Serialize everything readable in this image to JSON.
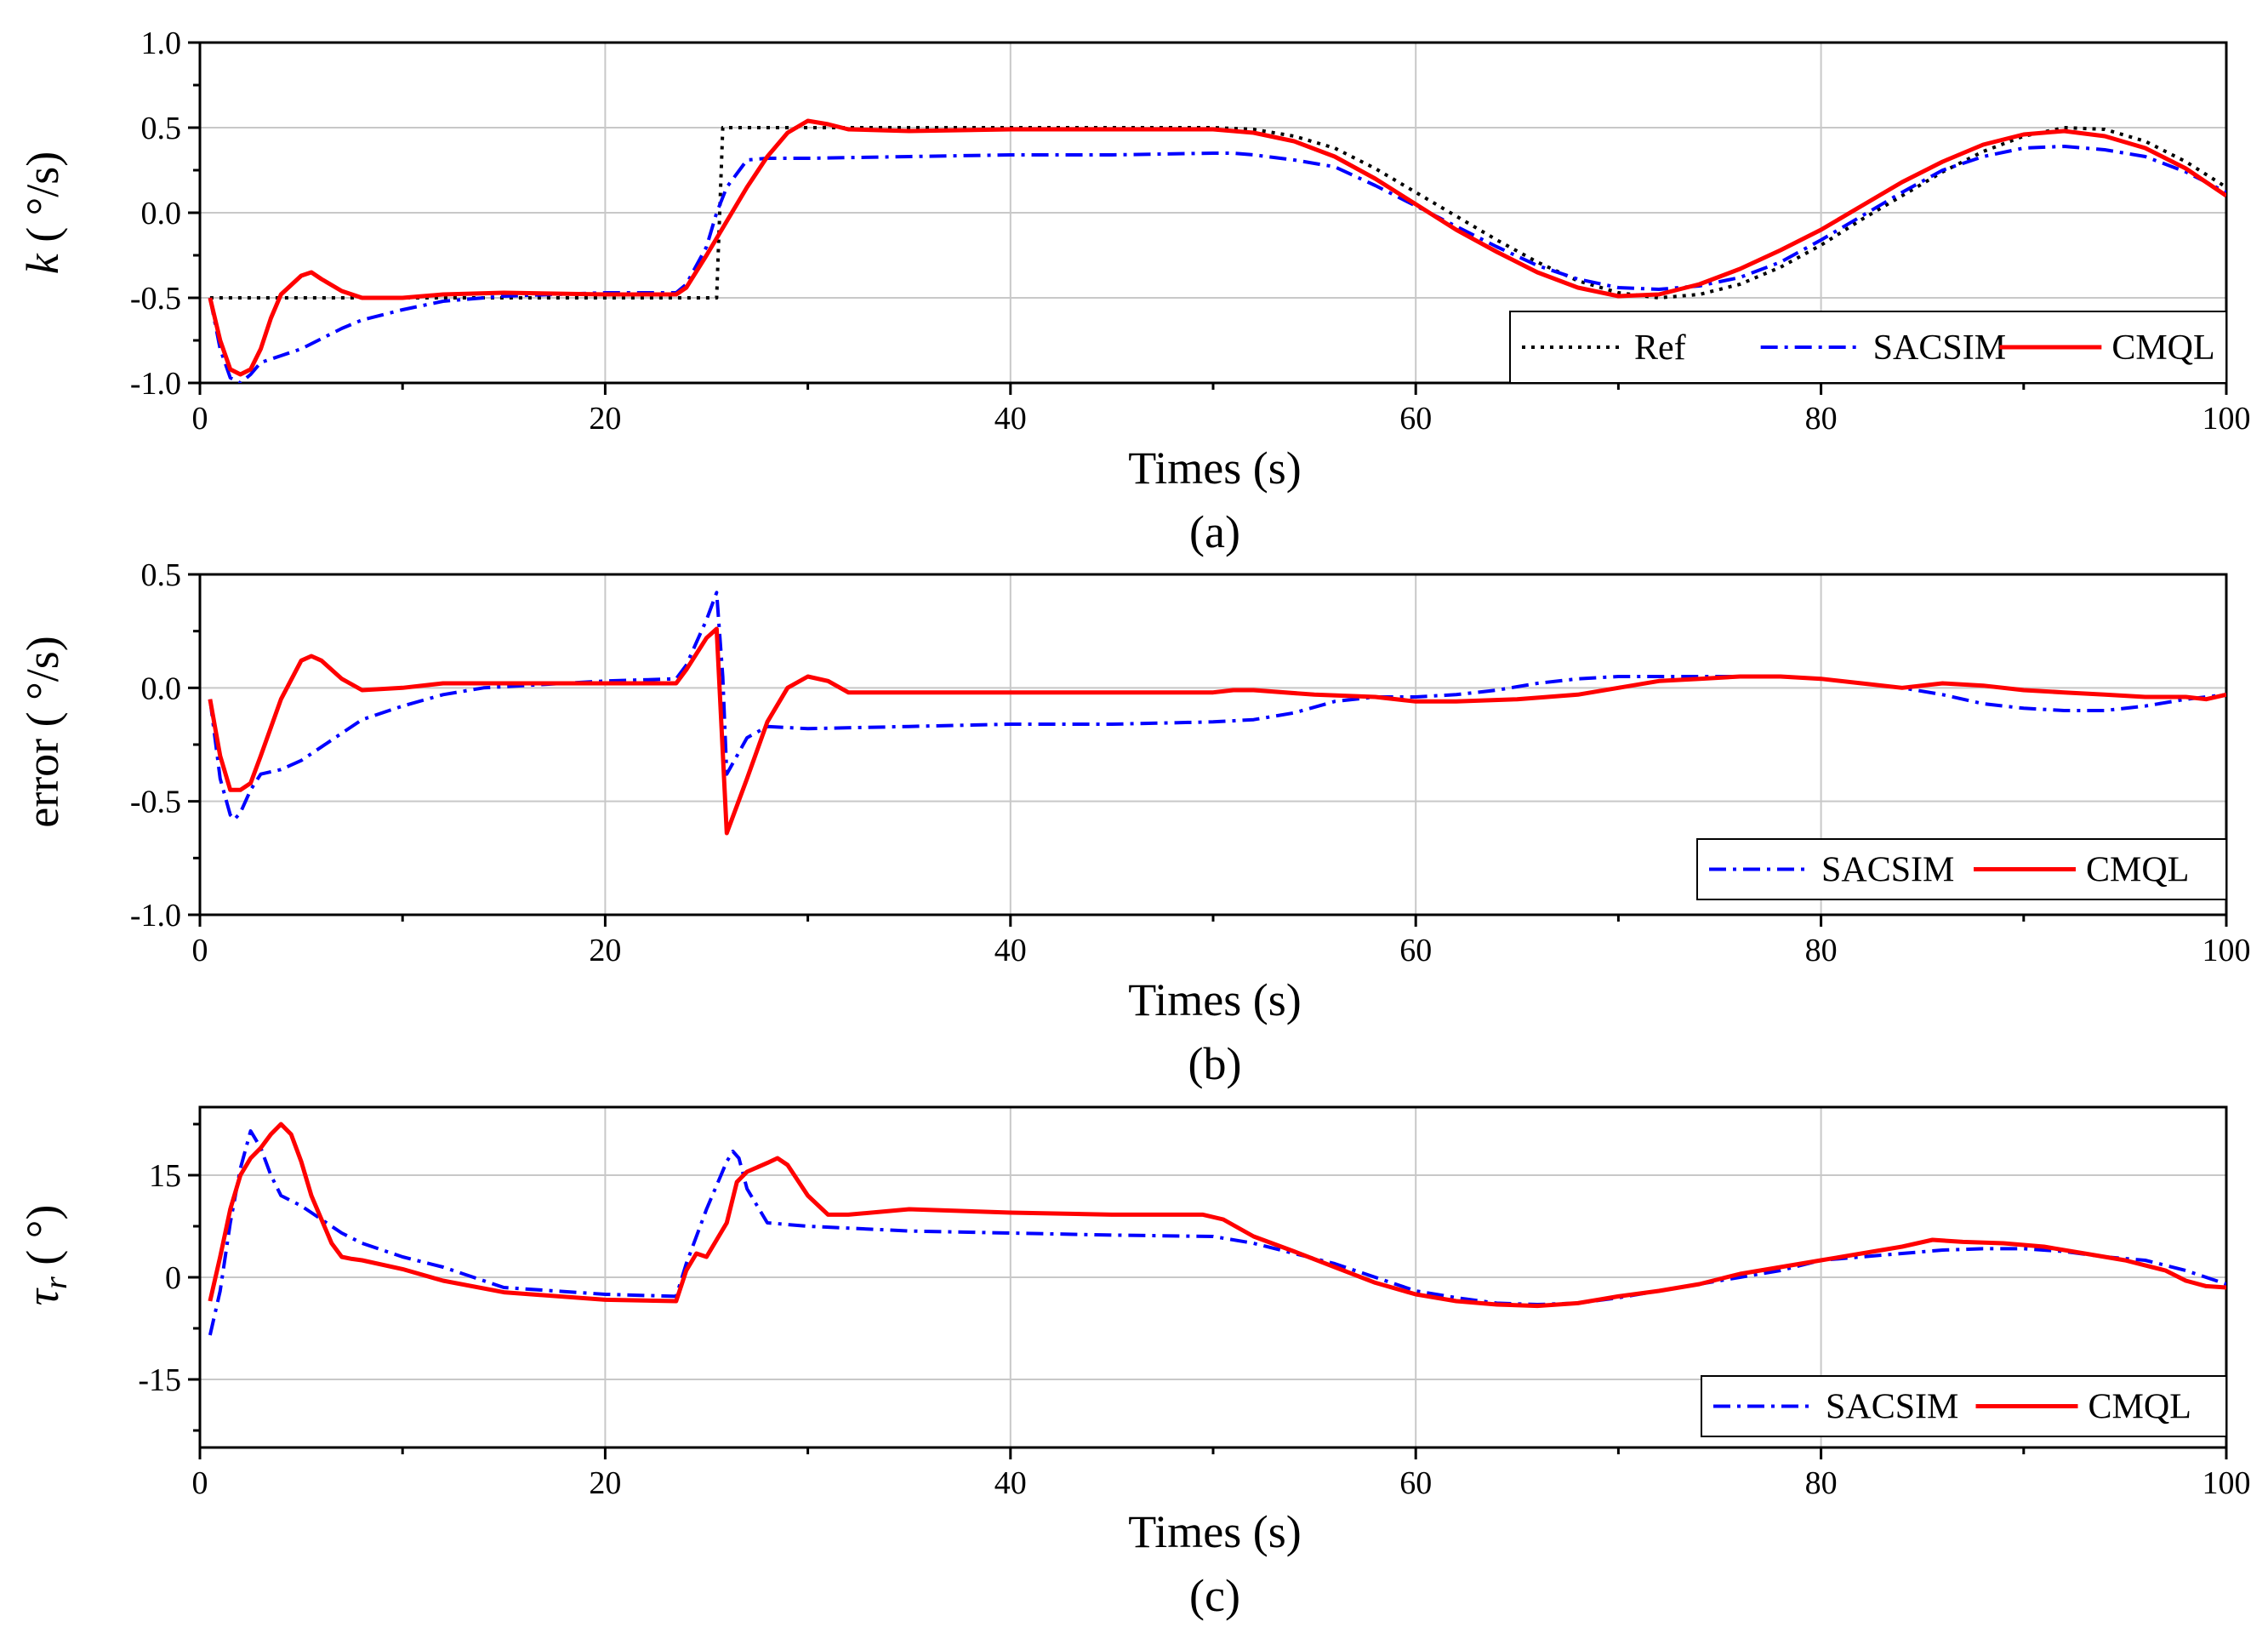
{
  "colors": {
    "ref": "#000000",
    "sacsim": "#0000ff",
    "cmql": "#ff0000",
    "grid": "#c8c8c8"
  },
  "chart_data": [
    {
      "type": "line",
      "caption": "(a)",
      "xlabel": "Times (s)",
      "ylabel_main": "k",
      "ylabel_unit": " ( °/s)",
      "xlim": [
        0,
        100
      ],
      "ylim": [
        -1.0,
        1.0
      ],
      "xticks": [
        0,
        20,
        40,
        60,
        80,
        100
      ],
      "xtick_labels": [
        "0",
        "20",
        "40",
        "60",
        "80",
        "100"
      ],
      "yticks": [
        -1.0,
        -0.5,
        0.0,
        0.5,
        1.0
      ],
      "ytick_labels": [
        "-1.0",
        "-0.5",
        "0.0",
        "0.5",
        "1.0"
      ],
      "grid": true,
      "legend_position": "bottom-right",
      "series": [
        {
          "name": "Ref",
          "style": "dotted",
          "color": "#000000",
          "x": [
            0.5,
            25.5,
            25.8,
            50,
            52,
            54,
            56,
            58,
            60,
            62,
            64,
            66,
            68,
            70,
            72,
            74,
            76,
            78,
            80,
            82,
            84,
            86,
            88,
            90,
            92,
            94,
            96,
            98,
            100
          ],
          "y": [
            -0.5,
            -0.5,
            0.5,
            0.5,
            0.49,
            0.45,
            0.38,
            0.26,
            0.12,
            -0.02,
            -0.16,
            -0.29,
            -0.4,
            -0.47,
            -0.5,
            -0.48,
            -0.42,
            -0.32,
            -0.19,
            -0.04,
            0.1,
            0.24,
            0.36,
            0.45,
            0.5,
            0.49,
            0.42,
            0.3,
            0.15
          ]
        },
        {
          "name": "SACSIM",
          "style": "dashdot",
          "color": "#0000ff",
          "x": [
            0.5,
            1,
            1.5,
            2,
            2.5,
            3,
            4,
            5,
            6,
            7,
            8,
            10,
            12,
            15,
            20,
            23.5,
            24,
            25,
            25.5,
            26,
            27,
            28,
            30,
            35,
            40,
            45,
            50,
            51,
            52,
            54,
            56,
            58,
            60,
            62,
            64,
            66,
            68,
            70,
            72,
            74,
            76,
            78,
            80,
            82,
            84,
            86,
            88,
            90,
            92,
            94,
            96,
            98,
            100
          ],
          "y": [
            -0.5,
            -0.8,
            -0.97,
            -1.0,
            -0.95,
            -0.88,
            -0.84,
            -0.8,
            -0.74,
            -0.68,
            -0.63,
            -0.57,
            -0.52,
            -0.49,
            -0.47,
            -0.47,
            -0.42,
            -0.2,
            0.0,
            0.15,
            0.31,
            0.32,
            0.32,
            0.33,
            0.34,
            0.34,
            0.35,
            0.35,
            0.34,
            0.31,
            0.27,
            0.16,
            0.04,
            -0.08,
            -0.2,
            -0.31,
            -0.39,
            -0.44,
            -0.45,
            -0.43,
            -0.38,
            -0.29,
            -0.16,
            -0.02,
            0.12,
            0.25,
            0.33,
            0.38,
            0.39,
            0.37,
            0.33,
            0.24,
            0.12
          ]
        },
        {
          "name": "CMQL",
          "style": "solid",
          "color": "#ff0000",
          "x": [
            0.5,
            1,
            1.5,
            2,
            2.5,
            3,
            3.5,
            4,
            5,
            5.5,
            6,
            7,
            8,
            10,
            12,
            15,
            20,
            23.5,
            24,
            25,
            26,
            27,
            28,
            29,
            30,
            31,
            32,
            35,
            40,
            45,
            50,
            52,
            54,
            56,
            58,
            60,
            62,
            64,
            66,
            68,
            70,
            72,
            74,
            76,
            78,
            80,
            82,
            84,
            86,
            88,
            90,
            92,
            94,
            96,
            98,
            100
          ],
          "y": [
            -0.5,
            -0.75,
            -0.92,
            -0.95,
            -0.92,
            -0.8,
            -0.62,
            -0.48,
            -0.37,
            -0.35,
            -0.39,
            -0.46,
            -0.5,
            -0.5,
            -0.48,
            -0.47,
            -0.48,
            -0.48,
            -0.44,
            -0.25,
            -0.05,
            0.15,
            0.33,
            0.47,
            0.54,
            0.52,
            0.49,
            0.48,
            0.49,
            0.49,
            0.49,
            0.47,
            0.42,
            0.33,
            0.2,
            0.05,
            -0.1,
            -0.23,
            -0.35,
            -0.44,
            -0.49,
            -0.48,
            -0.42,
            -0.33,
            -0.22,
            -0.1,
            0.04,
            0.18,
            0.3,
            0.4,
            0.46,
            0.48,
            0.45,
            0.38,
            0.26,
            0.1
          ]
        }
      ]
    },
    {
      "type": "line",
      "caption": "(b)",
      "xlabel": "Times (s)",
      "ylabel_main": "error",
      "ylabel_unit": " ( °/s)",
      "xlim": [
        0,
        100
      ],
      "ylim": [
        -1.0,
        0.5
      ],
      "xticks": [
        0,
        20,
        40,
        60,
        80,
        100
      ],
      "xtick_labels": [
        "0",
        "20",
        "40",
        "60",
        "80",
        "100"
      ],
      "yticks": [
        -1.0,
        -0.5,
        0.0,
        0.5
      ],
      "ytick_labels": [
        "-1.0",
        "-0.5",
        "0.0",
        "0.5"
      ],
      "grid": true,
      "legend_position": "bottom-right",
      "series": [
        {
          "name": "SACSIM",
          "style": "dashdot",
          "color": "#0000ff",
          "x": [
            0.5,
            1,
            1.5,
            1.7,
            2,
            2.5,
            3,
            4,
            5,
            6,
            7,
            8,
            10,
            12,
            14,
            20,
            23.5,
            24,
            25,
            25.5,
            25.8,
            26,
            27,
            28,
            30,
            35,
            40,
            45,
            50,
            52,
            54,
            56,
            58,
            60,
            62,
            64,
            66,
            68,
            70,
            72,
            74,
            76,
            78,
            80,
            82,
            84,
            86,
            88,
            90,
            92,
            94,
            96,
            98,
            100
          ],
          "y": [
            -0.05,
            -0.4,
            -0.56,
            -0.58,
            -0.55,
            -0.45,
            -0.38,
            -0.36,
            -0.32,
            -0.26,
            -0.2,
            -0.14,
            -0.08,
            -0.03,
            0.0,
            0.03,
            0.04,
            0.1,
            0.3,
            0.42,
            0.05,
            -0.38,
            -0.22,
            -0.17,
            -0.18,
            -0.17,
            -0.16,
            -0.16,
            -0.15,
            -0.14,
            -0.11,
            -0.06,
            -0.04,
            -0.04,
            -0.03,
            -0.01,
            0.02,
            0.04,
            0.05,
            0.05,
            0.05,
            0.05,
            0.05,
            0.04,
            0.02,
            0.0,
            -0.03,
            -0.07,
            -0.09,
            -0.1,
            -0.1,
            -0.08,
            -0.05,
            -0.03
          ]
        },
        {
          "name": "CMQL",
          "style": "solid",
          "color": "#ff0000",
          "x": [
            0.5,
            1,
            1.5,
            2,
            2.5,
            3,
            4,
            5,
            5.5,
            6,
            7,
            8,
            10,
            12,
            15,
            20,
            23.5,
            24,
            25,
            25.5,
            26,
            27,
            28,
            29,
            30,
            31,
            32,
            35,
            40,
            45,
            50,
            51,
            52,
            55,
            58,
            60,
            62,
            65,
            68,
            70,
            72,
            74,
            76,
            78,
            80,
            82,
            84,
            86,
            88,
            90,
            92,
            94,
            96,
            98,
            99,
            100
          ],
          "y": [
            -0.05,
            -0.3,
            -0.45,
            -0.45,
            -0.42,
            -0.3,
            -0.05,
            0.12,
            0.14,
            0.12,
            0.04,
            -0.01,
            0.0,
            0.02,
            0.02,
            0.02,
            0.02,
            0.08,
            0.22,
            0.26,
            -0.64,
            -0.4,
            -0.15,
            0.0,
            0.05,
            0.03,
            -0.02,
            -0.02,
            -0.02,
            -0.02,
            -0.02,
            -0.01,
            -0.01,
            -0.03,
            -0.04,
            -0.06,
            -0.06,
            -0.05,
            -0.03,
            0.0,
            0.03,
            0.04,
            0.05,
            0.05,
            0.04,
            0.02,
            0.0,
            0.02,
            0.01,
            -0.01,
            -0.02,
            -0.03,
            -0.04,
            -0.04,
            -0.05,
            -0.03
          ]
        }
      ]
    },
    {
      "type": "line",
      "caption": "(c)",
      "xlabel": "Times (s)",
      "ylabel_main": "τ",
      "ylabel_sub": "r",
      "ylabel_unit": " ( °)",
      "xlim": [
        0,
        100
      ],
      "ylim": [
        -25,
        25
      ],
      "xticks": [
        0,
        20,
        40,
        60,
        80,
        100
      ],
      "xtick_labels": [
        "0",
        "20",
        "40",
        "60",
        "80",
        "100"
      ],
      "yticks": [
        -15,
        0,
        15
      ],
      "ytick_labels": [
        "-15",
        "0",
        "15"
      ],
      "grid": true,
      "legend_position": "bottom-right",
      "series": [
        {
          "name": "SACSIM",
          "style": "dashdot",
          "color": "#0000ff",
          "x": [
            0.5,
            1,
            1.5,
            2,
            2.5,
            3,
            3.5,
            4,
            5,
            6,
            7,
            8,
            10,
            12,
            15,
            20,
            23.5,
            24,
            25,
            26,
            26.3,
            26.6,
            27,
            28,
            30,
            35,
            40,
            45,
            50,
            52,
            54,
            56,
            58,
            60,
            62,
            64,
            66,
            68,
            70,
            72,
            74,
            76,
            78,
            80,
            82,
            84,
            86,
            88,
            90,
            92,
            94,
            96,
            98,
            99,
            100
          ],
          "y": [
            -8.5,
            -2,
            8,
            16,
            21.5,
            19,
            15,
            12,
            10.5,
            8.5,
            6.5,
            5,
            3,
            1.5,
            -1.5,
            -2.5,
            -2.8,
            2,
            10,
            17,
            18.5,
            17.5,
            13,
            8,
            7.5,
            6.8,
            6.5,
            6.2,
            6.0,
            5.0,
            3.5,
            2,
            0,
            -2,
            -3,
            -3.8,
            -4,
            -3.8,
            -3,
            -2,
            -1,
            0,
            1,
            2.5,
            3,
            3.5,
            4,
            4.2,
            4.2,
            3.8,
            3,
            2.5,
            1,
            0,
            -1
          ]
        },
        {
          "name": "CMQL",
          "style": "solid",
          "color": "#ff0000",
          "x": [
            0.5,
            1,
            1.5,
            2,
            2.5,
            3,
            3.5,
            4,
            4.5,
            5,
            5.5,
            6,
            6.5,
            7,
            7.5,
            8,
            10,
            12,
            15,
            20,
            23.5,
            24,
            24.5,
            25,
            25.5,
            26,
            26.5,
            27,
            28,
            28.5,
            29,
            30,
            31,
            32,
            35,
            40,
            45,
            49.5,
            50.5,
            52,
            54,
            56,
            58,
            60,
            62,
            64,
            66,
            68,
            70,
            72,
            74,
            76,
            78,
            80,
            82,
            84,
            85.5,
            87,
            89,
            91,
            93,
            95,
            97,
            98,
            99,
            100
          ],
          "y": [
            -3.5,
            3,
            10,
            15,
            17.5,
            19,
            21,
            22.5,
            21,
            17,
            12,
            8.5,
            5,
            3,
            2.7,
            2.5,
            1.2,
            -0.5,
            -2.2,
            -3.3,
            -3.5,
            1,
            3.5,
            3,
            5.5,
            8,
            14,
            15.5,
            16.8,
            17.5,
            16.5,
            12,
            9.2,
            9.2,
            10,
            9.5,
            9.2,
            9.2,
            8.5,
            6,
            3.8,
            1.5,
            -0.8,
            -2.5,
            -3.5,
            -4,
            -4.2,
            -3.8,
            -2.8,
            -2,
            -1,
            0.5,
            1.5,
            2.5,
            3.5,
            4.5,
            5.5,
            5.2,
            5.0,
            4.5,
            3.5,
            2.5,
            1,
            -0.5,
            -1.3,
            -1.5
          ]
        }
      ]
    }
  ]
}
